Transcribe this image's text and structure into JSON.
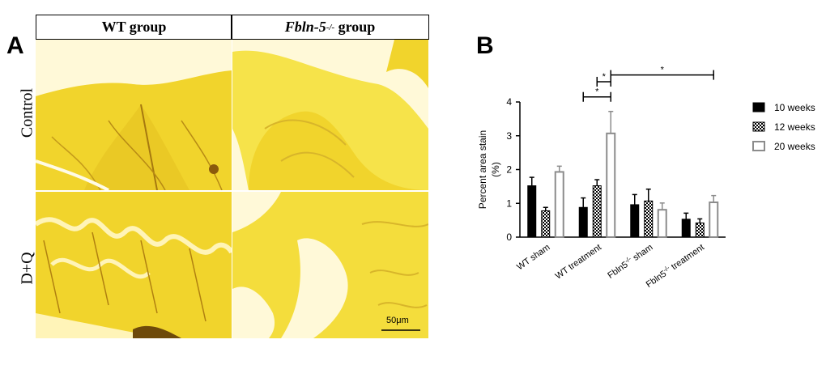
{
  "panel_a": {
    "letter": "A",
    "columns": [
      "WT group",
      "Fbln-5",
      "-/-",
      " group"
    ],
    "rows": [
      "Control",
      "D+Q"
    ],
    "scale_bar": "50μm"
  },
  "panel_b": {
    "letter": "B"
  },
  "colors": {
    "black": "#000000",
    "gray": "#8c8c8c",
    "stain": "#f2dc1e"
  },
  "chart_data": {
    "type": "bar",
    "ylabel_line1": "Percent area stain",
    "ylabel_line2": "(%)",
    "ylim": [
      0,
      4
    ],
    "yticks": [
      "0",
      "1",
      "2",
      "3",
      "4"
    ],
    "categories": [
      {
        "main": "WT sham",
        "sup": "",
        "rest": ""
      },
      {
        "main": "WT treatment",
        "sup": "",
        "rest": ""
      },
      {
        "main": "Fbln5",
        "sup": "-/-",
        "rest": " sham"
      },
      {
        "main": "Fbln5",
        "sup": "-/-",
        "rest": " treatment"
      }
    ],
    "series": [
      {
        "name": "10 weeks",
        "values": [
          1.52,
          0.88,
          0.96,
          0.53
        ],
        "errors": [
          0.25,
          0.28,
          0.3,
          0.18
        ]
      },
      {
        "name": "12 weeks",
        "values": [
          0.78,
          1.52,
          1.07,
          0.42
        ],
        "errors": [
          0.1,
          0.18,
          0.35,
          0.12
        ]
      },
      {
        "name": "20 weeks",
        "values": [
          1.93,
          3.07,
          0.81,
          1.03
        ],
        "errors": [
          0.17,
          0.65,
          0.2,
          0.2
        ]
      }
    ],
    "significance": [
      "*",
      "*",
      "*"
    ],
    "legend_position": "right"
  }
}
